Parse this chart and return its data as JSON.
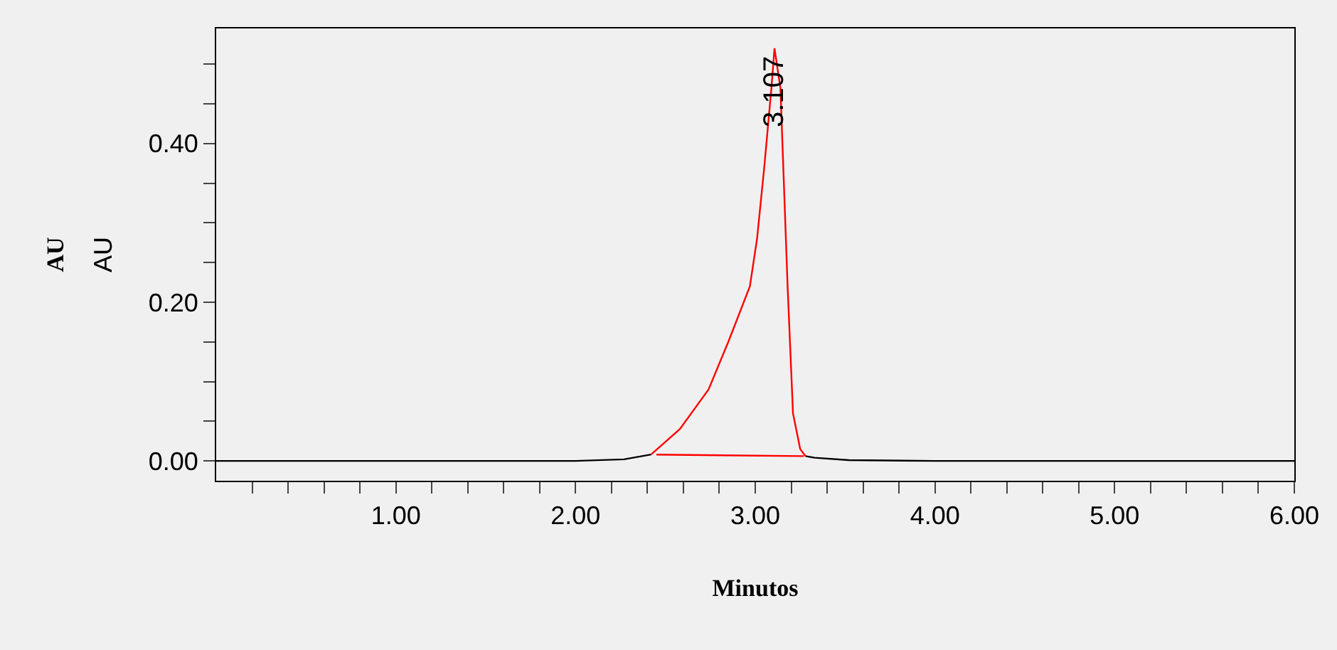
{
  "chart_data": {
    "type": "line",
    "xlabel": "Minutos",
    "ylabel": "AU",
    "annotations": [
      "AU",
      {
        "text": "3.107",
        "x": 3.107,
        "y": 0.52
      }
    ],
    "series": [
      {
        "color": "#000000",
        "x": [
          0,
          0.5,
          1.0,
          1.5,
          2.0,
          2.27,
          2.42,
          2.8,
          3.28,
          3.33,
          3.52,
          4.0,
          5.0,
          6.0
        ],
        "values": [
          0,
          0,
          0,
          0,
          0,
          0.002,
          0.008,
          null,
          0.006,
          0.004,
          0.001,
          0,
          0,
          0
        ]
      },
      {
        "color": "#ff0000",
        "x": [
          2.42,
          2.58,
          2.74,
          2.85,
          2.97,
          3.01,
          3.05,
          3.09,
          3.107,
          3.14,
          3.18,
          3.21,
          3.25,
          3.28
        ],
        "values": [
          0.008,
          0.04,
          0.09,
          0.15,
          0.22,
          0.28,
          0.37,
          0.47,
          0.52,
          0.47,
          0.22,
          0.06,
          0.015,
          0.006
        ]
      },
      {
        "color": "#ff0000",
        "x": [
          2.45,
          3.27
        ],
        "values": [
          0.008,
          0.006
        ]
      }
    ],
    "xlim": [
      0,
      6
    ],
    "ylim": [
      -0.025,
      0.545
    ],
    "xticks": [
      {
        "value": 0.2,
        "label": null
      },
      {
        "value": 0.4,
        "label": null
      },
      {
        "value": 0.6,
        "label": null
      },
      {
        "value": 0.8,
        "label": null
      },
      {
        "value": 1,
        "label": "1.00"
      },
      {
        "value": 1.2,
        "label": null
      },
      {
        "value": 1.4,
        "label": null
      },
      {
        "value": 1.6,
        "label": null
      },
      {
        "value": 1.8,
        "label": null
      },
      {
        "value": 2,
        "label": "2.00"
      },
      {
        "value": 2.2,
        "label": null
      },
      {
        "value": 2.4,
        "label": null
      },
      {
        "value": 2.6,
        "label": null
      },
      {
        "value": 2.8,
        "label": null
      },
      {
        "value": 3,
        "label": "3.00"
      },
      {
        "value": 3.2,
        "label": null
      },
      {
        "value": 3.4,
        "label": null
      },
      {
        "value": 3.6,
        "label": null
      },
      {
        "value": 3.8,
        "label": null
      },
      {
        "value": 4,
        "label": "4.00"
      },
      {
        "value": 4.2,
        "label": null
      },
      {
        "value": 4.4,
        "label": null
      },
      {
        "value": 4.6,
        "label": null
      },
      {
        "value": 4.8,
        "label": null
      },
      {
        "value": 5,
        "label": "5.00"
      },
      {
        "value": 5.2,
        "label": null
      },
      {
        "value": 5.4,
        "label": null
      },
      {
        "value": 5.6,
        "label": null
      },
      {
        "value": 5.8,
        "label": null
      },
      {
        "value": 6,
        "label": "6.00"
      }
    ],
    "yticks": [
      {
        "value": 0,
        "label": "0.00"
      },
      {
        "value": 0.05,
        "label": null
      },
      {
        "value": 0.1,
        "label": null
      },
      {
        "value": 0.15,
        "label": null
      },
      {
        "value": 0.2,
        "label": "0.20"
      },
      {
        "value": 0.25,
        "label": null
      },
      {
        "value": 0.3,
        "label": null
      },
      {
        "value": 0.35,
        "label": null
      },
      {
        "value": 0.4,
        "label": "0.40"
      },
      {
        "value": 0.45,
        "label": null
      },
      {
        "value": 0.5,
        "label": null
      }
    ],
    "grid": false
  }
}
